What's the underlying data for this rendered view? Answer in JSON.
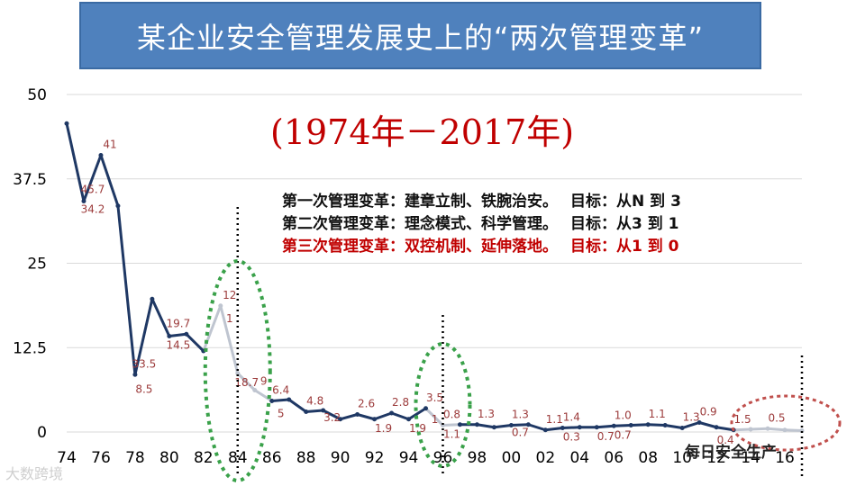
{
  "title": "某企业安全管理发展史上的“两次管理变革”",
  "period": "(1974年－2017年)",
  "reforms": [
    {
      "name": "第一次管理变革：建章立制、铁腕治安。",
      "goal": "目标：从N 到 3",
      "color": "#111111"
    },
    {
      "name": "第二次管理变革：理念模式、科学管理。",
      "goal": "目标：从3  到 1",
      "color": "#111111"
    },
    {
      "name": "第三次管理变革：双控机制、延伸落地。",
      "goal": "目标：从1  到  0",
      "color": "#c00000"
    }
  ],
  "watermark": "大数跨境",
  "brand": "每日安全生产",
  "colors": {
    "title_bg": "#4f81bd",
    "line_dark": "#1f3864",
    "line_light": "#bfc5d0",
    "highlight": "#c00000",
    "ellipse_green": "#3aa14a",
    "ellipse_red": "#c0504d"
  },
  "chart_data": {
    "type": "line",
    "title": "",
    "xlabel": "",
    "ylabel": "",
    "ylim": [
      0,
      50
    ],
    "yticks": [
      "50",
      "37.5",
      "25",
      "12.5",
      "0"
    ],
    "xticks": [
      "74",
      "76",
      "78",
      "80",
      "82",
      "84",
      "86",
      "88",
      "90",
      "92",
      "94",
      "96",
      "98",
      "00",
      "02",
      "04",
      "06",
      "08",
      "10",
      "12",
      "14",
      "16"
    ],
    "grid": "horizontal",
    "series": [
      {
        "name": "",
        "x": [
          1974,
          1975,
          1976,
          1977,
          1978,
          1979,
          1980,
          1981,
          1982,
          1983,
          1984,
          1985,
          1986,
          1987,
          1988,
          1989,
          1990,
          1991,
          1992,
          1993,
          1994,
          1995,
          1996,
          1997,
          1998,
          1999,
          2000,
          2001,
          2002,
          2003,
          2004,
          2005,
          2006,
          2007,
          2008,
          2009,
          2010,
          2011,
          2012,
          2013,
          2014,
          2015,
          2016,
          2017
        ],
        "values": [
          45.7,
          34.2,
          41,
          33.5,
          8.5,
          19.7,
          14.2,
          14.5,
          12,
          18.7,
          8.7,
          6.2,
          4.6,
          4.8,
          3.0,
          3.2,
          1.9,
          2.6,
          1.9,
          2.8,
          1.9,
          3.5,
          1.0,
          1.1,
          1.1,
          0.7,
          1.0,
          1.1,
          0.3,
          0.6,
          0.7,
          0.7,
          0.9,
          1.0,
          1.1,
          1.0,
          0.6,
          1.4,
          0.7,
          0.3,
          0.4,
          0.5,
          0.3,
          0.2
        ]
      }
    ],
    "data_labels": [
      {
        "x": 1975,
        "text": "45.7"
      },
      {
        "x": 1975,
        "text": "34.2"
      },
      {
        "x": 1976,
        "text": "41"
      },
      {
        "x": 1978,
        "text": "33.5"
      },
      {
        "x": 1978,
        "text": "8.5"
      },
      {
        "x": 1980,
        "text": "19.7"
      },
      {
        "x": 1980,
        "text": "14.5"
      },
      {
        "x": 1983,
        "text": "12"
      },
      {
        "x": 1983,
        "text": "1"
      },
      {
        "x": 1984,
        "text": "18.7"
      },
      {
        "x": 1985,
        "text": "9"
      },
      {
        "x": 1986,
        "text": "6.4"
      },
      {
        "x": 1986,
        "text": "5"
      },
      {
        "x": 1988,
        "text": "4.8"
      },
      {
        "x": 1989,
        "text": "3.2"
      },
      {
        "x": 1991,
        "text": "2.6"
      },
      {
        "x": 1992,
        "text": "1.9"
      },
      {
        "x": 1993,
        "text": "2.8"
      },
      {
        "x": 1994,
        "text": "1.9"
      },
      {
        "x": 1995,
        "text": "3.5"
      },
      {
        "x": 1995,
        "text": "1"
      },
      {
        "x": 1996,
        "text": "0.8"
      },
      {
        "x": 1996,
        "text": "1.1"
      },
      {
        "x": 1998,
        "text": "1.3"
      },
      {
        "x": 2000,
        "text": "1.3"
      },
      {
        "x": 2000,
        "text": "0.7"
      },
      {
        "x": 2002,
        "text": "1.1"
      },
      {
        "x": 2003,
        "text": "1.4"
      },
      {
        "x": 2003,
        "text": "0.3"
      },
      {
        "x": 2005,
        "text": "0.7"
      },
      {
        "x": 2006,
        "text": "1.0"
      },
      {
        "x": 2006,
        "text": "0.7"
      },
      {
        "x": 2008,
        "text": "1.1"
      },
      {
        "x": 2010,
        "text": "1.3"
      },
      {
        "x": 2011,
        "text": "0.9"
      },
      {
        "x": 2012,
        "text": "0.4"
      },
      {
        "x": 2013,
        "text": "1.5"
      },
      {
        "x": 2015,
        "text": "0.5"
      }
    ]
  }
}
